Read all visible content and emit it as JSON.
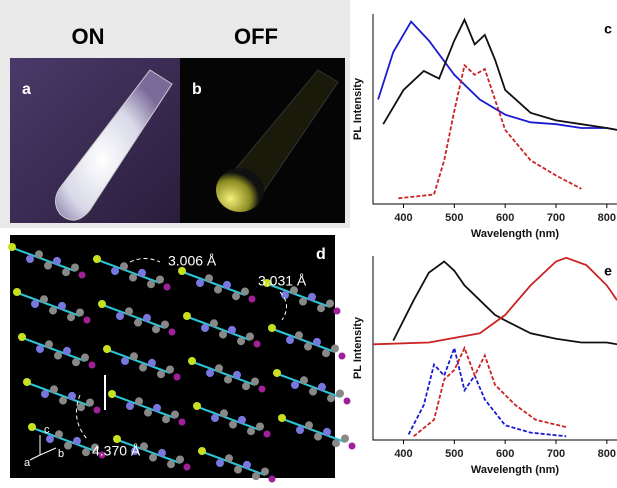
{
  "panels": {
    "states": [
      "ON",
      "OFF"
    ],
    "photo_labels": [
      "a",
      "b"
    ],
    "structure": {
      "label": "d",
      "distances": [
        "3.006 Å",
        "3.031 Å",
        "4.370 Å"
      ],
      "axes": [
        "c",
        "a",
        "b"
      ]
    }
  },
  "chart_data": [
    {
      "type": "line",
      "panel_label": "c",
      "y_label": "PL Intensity",
      "x_label": "Wavelength (nm)",
      "xlim": [
        340,
        820
      ],
      "ylim": [
        0,
        1
      ],
      "xticks": [
        400,
        500,
        600,
        700,
        800
      ],
      "series": [
        {
          "color": "#1a1ad0",
          "dashed": false,
          "x": [
            350,
            380,
            415,
            450,
            500,
            550,
            600,
            650,
            700,
            750,
            800,
            820
          ],
          "values": [
            0.55,
            0.8,
            0.96,
            0.86,
            0.68,
            0.55,
            0.47,
            0.43,
            0.42,
            0.4,
            0.4,
            0.39
          ]
        },
        {
          "color": "#111111",
          "dashed": false,
          "x": [
            360,
            400,
            440,
            470,
            500,
            520,
            540,
            560,
            580,
            600,
            650,
            700,
            750,
            800,
            820
          ],
          "values": [
            0.42,
            0.6,
            0.7,
            0.66,
            0.86,
            0.97,
            0.84,
            0.89,
            0.76,
            0.6,
            0.48,
            0.44,
            0.42,
            0.4,
            0.39
          ]
        },
        {
          "color": "#cc2222",
          "dashed": true,
          "x": [
            390,
            460,
            480,
            500,
            520,
            540,
            560,
            580,
            600,
            650,
            700,
            750
          ],
          "values": [
            0.03,
            0.05,
            0.23,
            0.49,
            0.73,
            0.68,
            0.71,
            0.55,
            0.39,
            0.23,
            0.15,
            0.08
          ]
        }
      ]
    },
    {
      "type": "line",
      "panel_label": "e",
      "y_label": "PL Intensity",
      "x_label": "Wavelength (nm)",
      "xlim": [
        340,
        820
      ],
      "ylim": [
        0,
        1
      ],
      "xticks": [
        400,
        500,
        600,
        700,
        800
      ],
      "series": [
        {
          "color": "#111111",
          "dashed": false,
          "x": [
            380,
            420,
            450,
            480,
            500,
            520,
            550,
            580,
            600,
            650,
            700,
            750,
            800,
            820
          ],
          "values": [
            0.54,
            0.76,
            0.91,
            0.97,
            0.92,
            0.84,
            0.76,
            0.68,
            0.65,
            0.58,
            0.55,
            0.53,
            0.53,
            0.52
          ]
        },
        {
          "color": "#cc2222",
          "dashed": false,
          "x": [
            340,
            450,
            550,
            600,
            650,
            700,
            720,
            760,
            800,
            820
          ],
          "values": [
            0.52,
            0.53,
            0.58,
            0.68,
            0.84,
            0.97,
            0.99,
            0.95,
            0.84,
            0.76
          ]
        },
        {
          "color": "#1a1ad0",
          "dashed": true,
          "x": [
            410,
            440,
            460,
            480,
            500,
            520,
            540,
            560,
            600,
            650,
            720
          ],
          "values": [
            0.03,
            0.19,
            0.41,
            0.35,
            0.5,
            0.27,
            0.35,
            0.22,
            0.08,
            0.04,
            0.02
          ]
        },
        {
          "color": "#cc2222",
          "dashed": true,
          "x": [
            420,
            460,
            480,
            500,
            520,
            540,
            560,
            580,
            620,
            660,
            720
          ],
          "values": [
            0.02,
            0.11,
            0.33,
            0.38,
            0.5,
            0.35,
            0.46,
            0.3,
            0.19,
            0.11,
            0.07
          ]
        }
      ]
    }
  ]
}
